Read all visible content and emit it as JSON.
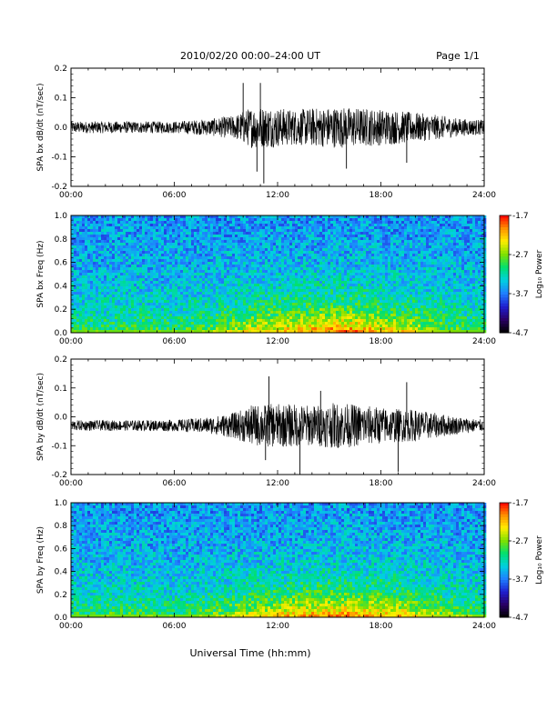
{
  "header": {
    "title": "2010/02/20  00:00–24:00 UT",
    "page": "Page 1/1"
  },
  "colors": {
    "colormap": [
      "#000000",
      "#2a0066",
      "#1f1fd0",
      "#1f7fff",
      "#00d0e0",
      "#00e070",
      "#7fe000",
      "#ffee00",
      "#ff9000",
      "#ff0000"
    ]
  },
  "chart_data": [
    {
      "type": "line",
      "ylabel": "SPA bx dB/dt (nT/sec)",
      "xlim": [
        0,
        24
      ],
      "ylim": [
        -0.2,
        0.2
      ],
      "yticks": [
        "-0.2",
        "-0.1",
        "0.0",
        "0.1",
        "0.2"
      ],
      "xticks": [
        "00:00",
        "06:00",
        "12:00",
        "18:00",
        "24:00"
      ],
      "baseline": 0.0,
      "envelope": {
        "hours": [
          0,
          3,
          6,
          8,
          9.5,
          10.5,
          11.5,
          13,
          14,
          15.5,
          17,
          18.5,
          20,
          21.5,
          22.5,
          24
        ],
        "amplitude": [
          0.02,
          0.02,
          0.02,
          0.028,
          0.04,
          0.07,
          0.07,
          0.06,
          0.065,
          0.07,
          0.065,
          0.06,
          0.05,
          0.04,
          0.03,
          0.025
        ]
      },
      "spikes": [
        {
          "hour": 10.0,
          "value": 0.15
        },
        {
          "hour": 11.0,
          "value": 0.15
        },
        {
          "hour": 11.2,
          "value": -0.19
        },
        {
          "hour": 10.8,
          "value": -0.15
        },
        {
          "hour": 16.0,
          "value": -0.14
        },
        {
          "hour": 19.5,
          "value": -0.12
        }
      ]
    },
    {
      "type": "heatmap",
      "ylabel": "SPA bx Freq (Hz)",
      "xlim": [
        0,
        24
      ],
      "ylim": [
        0.0,
        1.0
      ],
      "yticks": [
        "0.0",
        "0.2",
        "0.4",
        "0.6",
        "0.8",
        "1.0"
      ],
      "xticks": [
        "00:00",
        "06:00",
        "12:00",
        "18:00",
        "24:00"
      ],
      "colorbar": {
        "label": "Log₁₀ Power",
        "range": [
          -4.7,
          -1.7
        ],
        "ticks": [
          "-1.7",
          "-2.7",
          "-3.7",
          "-4.7"
        ]
      },
      "activity": {
        "hours": [
          0,
          2,
          4,
          6,
          8,
          10,
          11,
          12,
          13,
          14,
          15,
          16,
          17,
          18,
          19,
          20,
          21,
          22,
          24
        ],
        "level": [
          0.3,
          0.3,
          0.35,
          0.3,
          0.4,
          0.6,
          0.7,
          0.72,
          0.8,
          0.85,
          0.9,
          0.9,
          0.85,
          0.75,
          0.7,
          0.6,
          0.5,
          0.4,
          0.3
        ]
      }
    },
    {
      "type": "line",
      "ylabel": "SPA by dB/dt (nT/sec)",
      "xlim": [
        0,
        24
      ],
      "ylim": [
        -0.2,
        0.2
      ],
      "yticks": [
        "-0.2",
        "-0.1",
        "0.0",
        "0.1",
        "0.2"
      ],
      "xticks": [
        "00:00",
        "06:00",
        "12:00",
        "18:00",
        "24:00"
      ],
      "baseline": -0.03,
      "envelope": {
        "hours": [
          0,
          3,
          6,
          8,
          9.5,
          10.5,
          11.5,
          13,
          14,
          15.5,
          17,
          18.5,
          20,
          21.5,
          22.5,
          24
        ],
        "amplitude": [
          0.018,
          0.018,
          0.02,
          0.028,
          0.045,
          0.07,
          0.075,
          0.075,
          0.07,
          0.08,
          0.07,
          0.06,
          0.055,
          0.04,
          0.03,
          0.02
        ]
      },
      "spikes": [
        {
          "hour": 11.5,
          "value": 0.14
        },
        {
          "hour": 11.3,
          "value": -0.15
        },
        {
          "hour": 13.3,
          "value": -0.2
        },
        {
          "hour": 14.5,
          "value": 0.09
        },
        {
          "hour": 19.5,
          "value": 0.12
        },
        {
          "hour": 19.0,
          "value": -0.19
        }
      ]
    },
    {
      "type": "heatmap",
      "ylabel": "SPA by Freq (Hz)",
      "xlim": [
        0,
        24
      ],
      "ylim": [
        0.0,
        1.0
      ],
      "yticks": [
        "0.0",
        "0.2",
        "0.4",
        "0.6",
        "0.8",
        "1.0"
      ],
      "xticks": [
        "00:00",
        "06:00",
        "12:00",
        "18:00",
        "24:00"
      ],
      "colorbar": {
        "label": "Log₁₀ Power",
        "range": [
          -4.7,
          -1.7
        ],
        "ticks": [
          "-1.7",
          "-2.7",
          "-3.7",
          "-4.7"
        ]
      },
      "activity": {
        "hours": [
          0,
          2,
          4,
          6,
          8,
          10,
          11,
          12,
          13,
          14,
          15,
          16,
          17,
          18,
          19,
          20,
          21,
          22,
          24
        ],
        "level": [
          0.3,
          0.35,
          0.35,
          0.3,
          0.4,
          0.55,
          0.65,
          0.7,
          0.8,
          0.85,
          0.9,
          0.88,
          0.85,
          0.8,
          0.75,
          0.65,
          0.55,
          0.45,
          0.35
        ]
      }
    }
  ],
  "footer": {
    "xlabel": "Universal Time (hh:mm)"
  }
}
